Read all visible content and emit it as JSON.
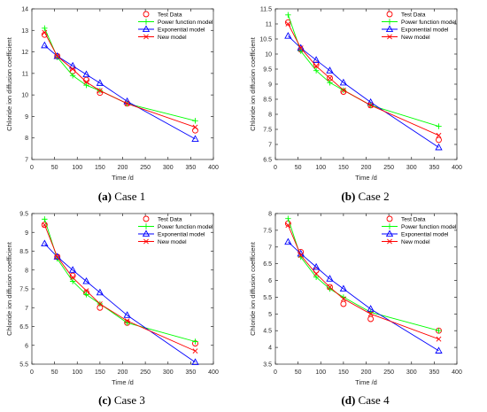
{
  "chart_data": [
    {
      "type": "line",
      "caption": {
        "label": "(a)",
        "text": "Case 1"
      },
      "xlabel": "Time /d",
      "ylabel": "Chloride ion diffusion coefficient",
      "xlim": [
        0,
        400
      ],
      "ylim": [
        7,
        14
      ],
      "xticks": [
        0,
        50,
        100,
        150,
        200,
        250,
        300,
        350,
        400
      ],
      "yticks": [
        7,
        8,
        9,
        10,
        11,
        12,
        13,
        14
      ],
      "grid": false,
      "legend": "top-right",
      "series": [
        {
          "name": "Test Data",
          "color": "#ff0000",
          "marker": "circle",
          "line": false,
          "x": [
            28,
            56,
            90,
            120,
            150,
            210,
            360
          ],
          "y": [
            12.8,
            11.8,
            11.1,
            10.7,
            10.1,
            9.6,
            8.35
          ]
        },
        {
          "name": "Power function model",
          "color": "#00ff00",
          "marker": "plus",
          "line": true,
          "x": [
            28,
            56,
            90,
            120,
            150,
            210,
            360
          ],
          "y": [
            13.1,
            11.75,
            10.9,
            10.45,
            10.2,
            9.6,
            8.8
          ]
        },
        {
          "name": "Exponential model",
          "color": "#0000ff",
          "marker": "triangle",
          "line": true,
          "x": [
            28,
            56,
            90,
            120,
            150,
            210,
            360
          ],
          "y": [
            12.3,
            11.8,
            11.35,
            10.95,
            10.55,
            9.7,
            7.95
          ]
        },
        {
          "name": "New model",
          "color": "#ff0000",
          "marker": "x",
          "line": true,
          "x": [
            28,
            56,
            90,
            120,
            150,
            210,
            360
          ],
          "y": [
            12.9,
            11.8,
            11.2,
            10.6,
            10.2,
            9.6,
            8.5
          ]
        }
      ]
    },
    {
      "type": "line",
      "caption": {
        "label": "(b)",
        "text": "Case 2"
      },
      "xlabel": "Time /d",
      "ylabel": "Chloride ion diffusion coefficient",
      "xlim": [
        0,
        400
      ],
      "ylim": [
        6.5,
        11.5
      ],
      "xticks": [
        0,
        50,
        100,
        150,
        200,
        250,
        300,
        350,
        400
      ],
      "yticks": [
        6.5,
        7,
        7.5,
        8,
        8.5,
        9,
        9.5,
        10,
        10.5,
        11,
        11.5
      ],
      "grid": false,
      "legend": "top-right",
      "series": [
        {
          "name": "Test Data",
          "color": "#ff0000",
          "marker": "circle",
          "line": false,
          "x": [
            28,
            56,
            90,
            120,
            150,
            210,
            360
          ],
          "y": [
            11.05,
            10.15,
            9.65,
            9.2,
            8.75,
            8.3,
            7.15
          ]
        },
        {
          "name": "Power function model",
          "color": "#00ff00",
          "marker": "plus",
          "line": true,
          "x": [
            28,
            56,
            90,
            120,
            150,
            210,
            360
          ],
          "y": [
            11.3,
            10.1,
            9.45,
            9.05,
            8.8,
            8.3,
            7.6
          ]
        },
        {
          "name": "Exponential model",
          "color": "#0000ff",
          "marker": "triangle",
          "line": true,
          "x": [
            28,
            56,
            90,
            120,
            150,
            210,
            360
          ],
          "y": [
            10.6,
            10.2,
            9.8,
            9.45,
            9.05,
            8.4,
            6.9
          ]
        },
        {
          "name": "New model",
          "color": "#ff0000",
          "marker": "x",
          "line": true,
          "x": [
            28,
            56,
            90,
            120,
            150,
            210,
            360
          ],
          "y": [
            11.0,
            10.2,
            9.6,
            9.2,
            8.8,
            8.3,
            7.3
          ]
        }
      ]
    },
    {
      "type": "line",
      "caption": {
        "label": "(c)",
        "text": "Case 3"
      },
      "xlabel": "Time /d",
      "ylabel": "Chloride ion diffusion coefficient",
      "xlim": [
        0,
        400
      ],
      "ylim": [
        5.5,
        9.5
      ],
      "xticks": [
        0,
        50,
        100,
        150,
        200,
        250,
        300,
        350,
        400
      ],
      "yticks": [
        5.5,
        6,
        6.5,
        7,
        7.5,
        8,
        8.5,
        9,
        9.5
      ],
      "grid": false,
      "legend": "top-right",
      "series": [
        {
          "name": "Test Data",
          "color": "#ff0000",
          "marker": "circle",
          "line": false,
          "x": [
            28,
            56,
            90,
            120,
            150,
            210,
            360
          ],
          "y": [
            9.2,
            8.35,
            7.85,
            7.4,
            7.0,
            6.6,
            6.05
          ]
        },
        {
          "name": "Power function model",
          "color": "#00ff00",
          "marker": "plus",
          "line": true,
          "x": [
            28,
            56,
            90,
            120,
            150,
            210,
            360
          ],
          "y": [
            9.35,
            8.3,
            7.7,
            7.35,
            7.1,
            6.6,
            6.1
          ]
        },
        {
          "name": "Exponential model",
          "color": "#0000ff",
          "marker": "triangle",
          "line": true,
          "x": [
            28,
            56,
            90,
            120,
            150,
            210,
            360
          ],
          "y": [
            8.7,
            8.35,
            8.0,
            7.7,
            7.4,
            6.8,
            5.55
          ]
        },
        {
          "name": "New model",
          "color": "#ff0000",
          "marker": "x",
          "line": true,
          "x": [
            28,
            56,
            90,
            120,
            150,
            210,
            360
          ],
          "y": [
            9.2,
            8.35,
            7.8,
            7.45,
            7.1,
            6.65,
            5.85
          ]
        }
      ]
    },
    {
      "type": "line",
      "caption": {
        "label": "(d)",
        "text": "Case 4"
      },
      "xlabel": "Time /d",
      "ylabel": "Chloride ion diffusion coefficient",
      "xlim": [
        0,
        400
      ],
      "ylim": [
        3.5,
        8
      ],
      "xticks": [
        0,
        50,
        100,
        150,
        200,
        250,
        300,
        350,
        400
      ],
      "yticks": [
        3.5,
        4,
        4.5,
        5,
        5.5,
        6,
        6.5,
        7,
        7.5,
        8
      ],
      "grid": false,
      "legend": "top-right",
      "series": [
        {
          "name": "Test Data",
          "color": "#ff0000",
          "marker": "circle",
          "line": false,
          "x": [
            28,
            56,
            90,
            120,
            150,
            210,
            360
          ],
          "y": [
            7.7,
            6.85,
            6.3,
            5.8,
            5.3,
            4.85,
            4.5
          ]
        },
        {
          "name": "Power function model",
          "color": "#00ff00",
          "marker": "plus",
          "line": true,
          "x": [
            28,
            56,
            90,
            120,
            150,
            210,
            360
          ],
          "y": [
            7.85,
            6.7,
            6.1,
            5.75,
            5.5,
            5.05,
            4.5
          ]
        },
        {
          "name": "Exponential model",
          "color": "#0000ff",
          "marker": "triangle",
          "line": true,
          "x": [
            28,
            56,
            90,
            120,
            150,
            210,
            360
          ],
          "y": [
            7.15,
            6.8,
            6.4,
            6.05,
            5.75,
            5.15,
            3.9
          ]
        },
        {
          "name": "New model",
          "color": "#ff0000",
          "marker": "x",
          "line": true,
          "x": [
            28,
            56,
            90,
            120,
            150,
            210,
            360
          ],
          "y": [
            7.65,
            6.75,
            6.2,
            5.8,
            5.45,
            5.0,
            4.25
          ]
        }
      ]
    }
  ]
}
